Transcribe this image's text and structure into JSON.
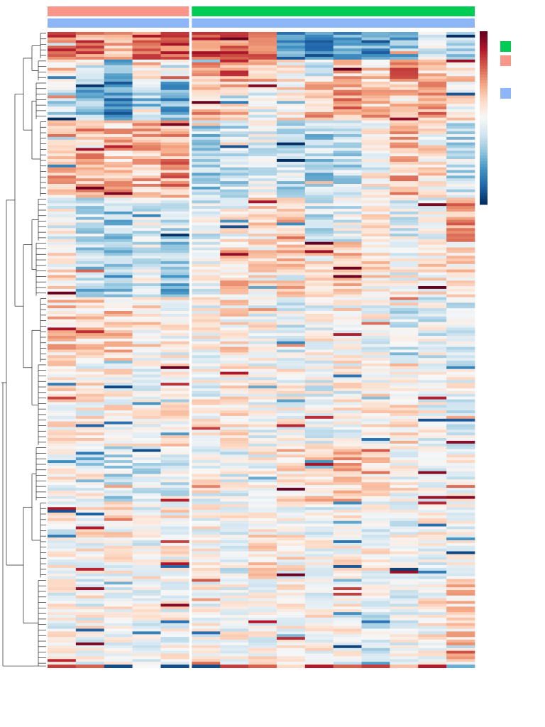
{
  "chart_data": {
    "type": "heatmap",
    "title": "",
    "xlabel": "",
    "ylabel": "",
    "n_rows": 230,
    "column_groups": [
      {
        "count": 5,
        "top_annotation_color": "#f8968a",
        "second_annotation_color": "#8cb6f8"
      },
      {
        "count": 10,
        "top_annotation_color": "#00cc55",
        "second_annotation_color": "#8cb6f8"
      }
    ],
    "color_scale": {
      "stops": [
        "#053061",
        "#2166ac",
        "#4393c3",
        "#92c5de",
        "#d1e5f0",
        "#f7f7f7",
        "#fddbc7",
        "#f4a582",
        "#d6604d",
        "#b2182b",
        "#67001f"
      ],
      "range": [
        -1,
        1
      ]
    },
    "legend": {
      "placement": "right",
      "items": [
        {
          "color": "#00cc55"
        },
        {
          "color": "#f8968a"
        },
        {
          "color": "#8cb6f8"
        }
      ]
    },
    "row_blocks": [
      {
        "rows": 10,
        "pattern": [
          0.6,
          0.5,
          0.4,
          0.55,
          0.6,
          0.6,
          0.55,
          0.5,
          -0.6,
          -0.7,
          -0.5,
          -0.6,
          -0.4,
          -0.2,
          -0.3
        ]
      },
      {
        "rows": 8,
        "pattern": [
          0.2,
          -0.1,
          -0.5,
          0.2,
          -0.1,
          0.4,
          0.5,
          0.3,
          0.1,
          -0.2,
          0.3,
          0.2,
          0.5,
          0.3,
          0.2
        ]
      },
      {
        "rows": 14,
        "pattern": [
          -0.2,
          -0.4,
          -0.6,
          -0.3,
          -0.5,
          0.3,
          0.2,
          0.0,
          0.1,
          0.3,
          0.4,
          0.3,
          0.2,
          0.4,
          0.1
        ]
      },
      {
        "rows": 28,
        "pattern": [
          0.3,
          0.35,
          0.25,
          0.3,
          0.4,
          -0.3,
          -0.2,
          -0.1,
          -0.2,
          -0.3,
          -0.2,
          0.0,
          0.3,
          0.1,
          -0.2
        ]
      },
      {
        "rows": 16,
        "pattern": [
          0.0,
          -0.2,
          -0.3,
          -0.1,
          -0.2,
          -0.1,
          0.0,
          0.1,
          0.3,
          -0.2,
          -0.1,
          0.1,
          -0.1,
          0.0,
          0.4
        ]
      },
      {
        "rows": 20,
        "pattern": [
          0.1,
          -0.3,
          -0.4,
          -0.1,
          -0.4,
          0.0,
          0.2,
          0.1,
          0.2,
          0.1,
          0.2,
          0.1,
          0.0,
          0.1,
          0.1
        ]
      },
      {
        "rows": 24,
        "pattern": [
          0.2,
          0.15,
          0.2,
          0.1,
          0.0,
          0.0,
          0.1,
          0.0,
          -0.1,
          0.0,
          0.05,
          0.0,
          -0.2,
          -0.1,
          -0.2
        ]
      },
      {
        "rows": 30,
        "pattern": [
          0.1,
          0.05,
          0.05,
          0.0,
          0.1,
          0.0,
          0.05,
          0.0,
          0.0,
          -0.05,
          0.0,
          0.05,
          0.1,
          0.0,
          -0.05
        ]
      },
      {
        "rows": 20,
        "pattern": [
          0.0,
          0.0,
          -0.2,
          -0.2,
          -0.1,
          0.0,
          -0.05,
          0.0,
          0.2,
          0.2,
          0.25,
          0.1,
          0.05,
          0.0,
          0.0
        ]
      },
      {
        "rows": 28,
        "pattern": [
          0.0,
          0.05,
          0.05,
          0.0,
          0.05,
          0.0,
          -0.05,
          0.1,
          0.05,
          0.0,
          0.0,
          0.0,
          -0.05,
          0.0,
          0.0
        ]
      },
      {
        "rows": 32,
        "pattern": [
          0.0,
          0.0,
          0.0,
          0.0,
          0.0,
          0.0,
          0.0,
          0.0,
          0.05,
          0.0,
          0.0,
          -0.1,
          -0.05,
          0.05,
          0.2
        ]
      }
    ],
    "bottom_row": [
      0.7,
      0.6,
      -0.9,
      0.0,
      -0.9,
      -0.9,
      0.7,
      0.6,
      0.2,
      0.8,
      0.6,
      0.7,
      0.3,
      0.8,
      -0.5
    ]
  }
}
